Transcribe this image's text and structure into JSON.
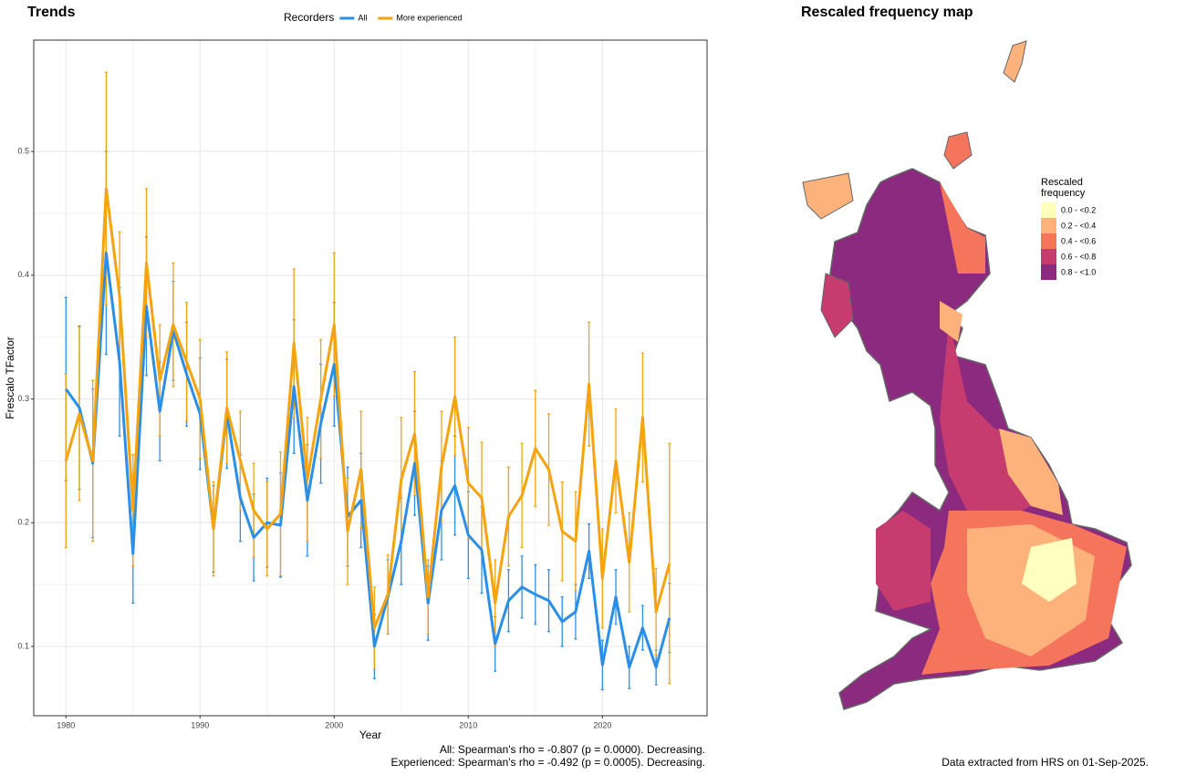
{
  "chart_data": [
    {
      "type": "line",
      "title": "Trends",
      "legend_title": "Recorders",
      "legend": "top",
      "xlabel": "Year",
      "ylabel": "Frescalo TFactor",
      "annotations": [
        "All: Spearman's rho = -0.807 (p = 0.0000). Decreasing.",
        "Experienced: Spearman's rho = -0.492 (p = 0.0005). Decreasing."
      ],
      "grid": true,
      "xlim": [
        1977.6,
        2027.8
      ],
      "xticks": [
        1980,
        1990,
        2000,
        2010,
        2020
      ],
      "ylim": [
        0.044,
        0.59
      ],
      "yticks": [
        0.1,
        0.2,
        0.3,
        0.4,
        0.5
      ],
      "x": [
        1980,
        1981,
        1982,
        1983,
        1984,
        1985,
        1986,
        1987,
        1988,
        1989,
        1990,
        1991,
        1992,
        1993,
        1994,
        1995,
        1996,
        1997,
        1998,
        1999,
        2000,
        2001,
        2002,
        2003,
        2004,
        2005,
        2006,
        2007,
        2008,
        2009,
        2010,
        2011,
        2012,
        2013,
        2014,
        2015,
        2016,
        2017,
        2018,
        2019,
        2020,
        2021,
        2022,
        2023,
        2024,
        2025
      ],
      "series": [
        {
          "name": "All",
          "color": "#2b8fe8",
          "values": [
            0.308,
            0.293,
            0.248,
            0.418,
            0.33,
            0.175,
            0.375,
            0.29,
            0.355,
            0.32,
            0.288,
            0.195,
            0.288,
            0.22,
            0.188,
            0.2,
            0.198,
            0.31,
            0.218,
            0.28,
            0.328,
            0.205,
            0.218,
            0.1,
            0.14,
            0.185,
            0.248,
            0.135,
            0.21,
            0.23,
            0.19,
            0.178,
            0.102,
            0.137,
            0.148,
            0.142,
            0.137,
            0.12,
            0.128,
            0.177,
            0.085,
            0.14,
            0.083,
            0.115,
            0.083,
            0.123
          ],
          "errors": [
            0.074,
            0.066,
            0.06,
            0.082,
            0.06,
            0.04,
            0.056,
            0.04,
            0.04,
            0.042,
            0.045,
            0.035,
            0.044,
            0.035,
            0.035,
            0.036,
            0.042,
            0.054,
            0.045,
            0.048,
            0.05,
            0.04,
            0.038,
            0.026,
            0.03,
            0.035,
            0.042,
            0.03,
            0.04,
            0.04,
            0.035,
            0.035,
            0.022,
            0.025,
            0.025,
            0.024,
            0.025,
            0.02,
            0.022,
            0.022,
            0.02,
            0.022,
            0.017,
            0.018,
            0.014,
            0.028
          ]
        },
        {
          "name": "More experienced",
          "color": "#f5a30f",
          "values": [
            0.25,
            0.288,
            0.25,
            0.47,
            0.383,
            0.21,
            0.41,
            0.315,
            0.36,
            0.33,
            0.3,
            0.195,
            0.293,
            0.25,
            0.21,
            0.195,
            0.207,
            0.345,
            0.235,
            0.3,
            0.36,
            0.193,
            0.243,
            0.115,
            0.142,
            0.235,
            0.272,
            0.14,
            0.245,
            0.302,
            0.232,
            0.22,
            0.135,
            0.205,
            0.222,
            0.26,
            0.243,
            0.193,
            0.185,
            0.312,
            0.155,
            0.25,
            0.168,
            0.285,
            0.128,
            0.167
          ],
          "errors": [
            0.07,
            0.07,
            0.065,
            0.094,
            0.052,
            0.045,
            0.06,
            0.045,
            0.05,
            0.048,
            0.048,
            0.038,
            0.045,
            0.04,
            0.038,
            0.038,
            0.05,
            0.06,
            0.05,
            0.048,
            0.058,
            0.043,
            0.047,
            0.033,
            0.032,
            0.05,
            0.05,
            0.03,
            0.045,
            0.048,
            0.045,
            0.045,
            0.035,
            0.04,
            0.042,
            0.047,
            0.045,
            0.04,
            0.04,
            0.05,
            0.04,
            0.042,
            0.04,
            0.052,
            0.035,
            0.097
          ]
        }
      ]
    },
    {
      "type": "map",
      "title": "Rescaled frequency map",
      "legend_title": [
        "Rescaled",
        "frequency"
      ],
      "categories": [
        "0.0 - <0.2",
        "0.2 - <0.4",
        "0.4 - <0.6",
        "0.6 - <0.8",
        "0.8 - <1.0"
      ],
      "colors": [
        "#ffffc0",
        "#fdb27c",
        "#f4755c",
        "#c73c6e",
        "#8b2a7f"
      ],
      "note": "Data extracted from HRS on 01-Sep-2025."
    }
  ]
}
